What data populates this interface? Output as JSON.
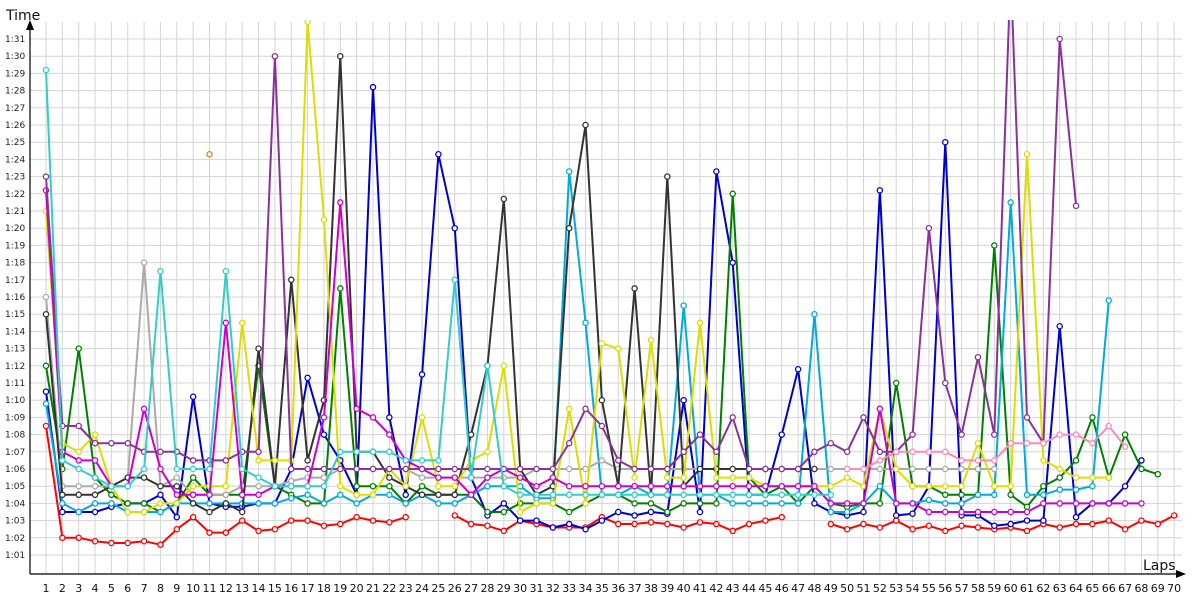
{
  "chart_data": {
    "type": "line",
    "xlabel": "Laps",
    "ylabel": "Time",
    "xlim": [
      1,
      70
    ],
    "ylim": [
      "1:00",
      "1:32"
    ],
    "x_ticks": [
      "1",
      "2",
      "3",
      "4",
      "5",
      "6",
      "7",
      "8",
      "9",
      "10",
      "11",
      "12",
      "13",
      "14",
      "15",
      "16",
      "17",
      "18",
      "19",
      "20",
      "21",
      "22",
      "23",
      "24",
      "25",
      "26",
      "27",
      "28",
      "29",
      "30",
      "31",
      "32",
      "33",
      "34",
      "35",
      "36",
      "37",
      "38",
      "39",
      "40",
      "41",
      "42",
      "43",
      "44",
      "45",
      "46",
      "47",
      "48",
      "49",
      "50",
      "51",
      "52",
      "53",
      "54",
      "55",
      "56",
      "57",
      "58",
      "59",
      "60",
      "61",
      "62",
      "63",
      "64",
      "65",
      "66",
      "67",
      "68",
      "69",
      "70"
    ],
    "y_ticks": [
      "1:01",
      "1:02",
      "1:03",
      "1:04",
      "1:05",
      "1:06",
      "1:07",
      "1:08",
      "1:09",
      "1:10",
      "1:11",
      "1:12",
      "1:13",
      "1:14",
      "1:15",
      "1:16",
      "1:17",
      "1:18",
      "1:19",
      "1:20",
      "1:21",
      "1:22",
      "1:23",
      "1:24",
      "1:25",
      "1:26",
      "1:27",
      "1:28",
      "1:29",
      "1:30",
      "1:31"
    ],
    "grid": true,
    "series": [
      {
        "color": "#ff0000",
        "values": [
          68.5,
          62,
          62,
          61.8,
          61.7,
          61.7,
          61.8,
          61.6,
          62.5,
          63.2,
          62.3,
          62.3,
          63,
          62.4,
          62.5,
          63,
          63,
          62.7,
          62.8,
          63.2,
          63,
          62.9,
          63.2,
          null,
          null,
          63.3,
          62.8,
          62.7,
          62.4,
          63,
          62.8,
          62.6,
          62.6,
          62.6,
          63.2,
          62.8,
          62.8,
          62.9,
          62.8,
          62.6,
          62.9,
          62.8,
          62.4,
          62.8,
          63,
          63.2,
          null,
          null,
          62.8,
          62.5,
          62.8,
          62.6,
          63,
          62.5,
          62.7,
          62.4,
          62.7,
          62.6,
          62.5,
          62.6,
          62.4,
          62.8,
          62.6,
          62.8,
          62.8,
          63,
          62.5,
          63,
          62.8,
          63.3
        ]
      },
      {
        "color": "#0000cc",
        "values": [
          70.5,
          63.5,
          63.5,
          63.5,
          63.8,
          64,
          64,
          64.5,
          63.2,
          70.2,
          64,
          63.8,
          63.8,
          64,
          64,
          66,
          71.3,
          68,
          66.5,
          64.5,
          88.2,
          69,
          64.5,
          71.5,
          84.3,
          80,
          65.5,
          63.3,
          64,
          63,
          63,
          62.6,
          62.8,
          62.5,
          63,
          63.5,
          63.3,
          63.5,
          63.4,
          70,
          63.5,
          83.3,
          78,
          64.5,
          64.5,
          68,
          71.8,
          64,
          63.5,
          63.3,
          63.5,
          82.2,
          63.3,
          63.4,
          65,
          85,
          63.3,
          63.3,
          62.7,
          62.8,
          63,
          63,
          74.3,
          63.2,
          64,
          64,
          65,
          66.5,
          null,
          null
        ]
      },
      {
        "color": "#008000",
        "values": [
          72,
          66,
          73,
          65.5,
          64.5,
          64,
          64,
          63.5,
          64,
          65.5,
          64.5,
          64.5,
          64.5,
          72,
          65,
          64.5,
          64,
          64,
          76.5,
          65,
          65,
          65,
          64,
          65,
          64.5,
          64.5,
          64.5,
          63.5,
          63.5,
          64,
          64,
          64,
          63.5,
          64,
          64.5,
          64.5,
          64,
          64,
          63.5,
          64,
          64,
          64,
          82,
          65.5,
          64.5,
          65,
          64,
          65,
          64,
          63.8,
          64,
          64,
          71,
          65,
          65,
          64.5,
          64.5,
          64.5,
          79,
          64.5,
          63.8,
          65,
          65.5,
          66.5,
          69,
          65.5,
          68,
          66,
          65.7,
          null
        ]
      },
      {
        "color": "#00aadd",
        "values": [
          69.8,
          64,
          63.5,
          64,
          64,
          63.5,
          63.5,
          63.5,
          64,
          64,
          64,
          64,
          64,
          64,
          64,
          64.3,
          64.5,
          64,
          64.5,
          64,
          64.5,
          64.5,
          64,
          64.5,
          64,
          64,
          64.5,
          65,
          65,
          65,
          64.3,
          64.3,
          83.3,
          74.5,
          64.5,
          64.5,
          65,
          64.5,
          64.5,
          75.5,
          64.5,
          64.5,
          64,
          64,
          64,
          64,
          64,
          75,
          63.5,
          63.5,
          64,
          65,
          64,
          64,
          64.2,
          64,
          64,
          64.5,
          64.5,
          81.5,
          64.5,
          64.5,
          64.8,
          64.8,
          65,
          75.8,
          null,
          null,
          null,
          null
        ]
      },
      {
        "color": "#aaaaaa",
        "values": [
          76,
          65,
          65,
          65,
          65,
          65.5,
          78,
          65,
          65.5,
          64.5,
          64.5,
          64.5,
          65,
          65,
          65,
          65.3,
          65.5,
          65.5,
          66,
          66,
          66,
          66,
          66,
          65.5,
          65.5,
          65.5,
          65.5,
          65.5,
          65.5,
          65.5,
          66,
          66,
          66,
          66,
          66.5,
          66,
          66,
          66,
          66,
          66,
          66,
          66,
          66,
          66,
          66,
          66,
          66,
          66,
          66,
          66,
          66,
          66,
          66,
          66,
          66,
          66,
          66,
          66,
          66,
          null,
          null,
          null,
          null,
          null,
          null,
          null,
          null,
          null,
          null,
          null
        ]
      },
      {
        "color": "#333333",
        "values": [
          75,
          64.5,
          64.5,
          64.5,
          65,
          65.5,
          65.5,
          65,
          65,
          64,
          63.5,
          64,
          63.5,
          73,
          65,
          77,
          66.5,
          70,
          90,
          67,
          67,
          65.5,
          65,
          64.5,
          64.5,
          64.5,
          68,
          72,
          81.7,
          66,
          64.5,
          65,
          80,
          86,
          70,
          65,
          76.5,
          64.5,
          83,
          65,
          66,
          66,
          66,
          66,
          66,
          66,
          66,
          66,
          null,
          null,
          null,
          null,
          null,
          null,
          null,
          null,
          null,
          null,
          null,
          null,
          null,
          null,
          null,
          null,
          null,
          null,
          null,
          null,
          null,
          null
        ]
      },
      {
        "color": "#dddd00",
        "values": [
          81,
          67.5,
          67,
          68,
          65,
          63.5,
          63.5,
          64,
          64,
          65,
          65,
          65,
          74.5,
          66.5,
          66.5,
          66.5,
          92,
          80.5,
          65,
          64.5,
          64.5,
          66,
          65,
          69,
          65,
          65,
          66.5,
          67,
          72,
          63.5,
          64,
          64,
          69.5,
          64,
          73.3,
          73,
          65.5,
          73.5,
          65.5,
          65.5,
          74.5,
          65.5,
          65.5,
          65.5,
          65,
          65,
          65,
          65,
          65,
          65.5,
          65,
          69.5,
          66,
          65,
          65,
          65,
          65,
          67.5,
          65,
          65,
          84.3,
          66.5,
          66,
          65.5,
          65.5,
          65.5,
          null,
          null,
          null,
          null
        ]
      },
      {
        "color": "#cc00cc",
        "values": [
          82.2,
          67,
          66.5,
          66.5,
          65,
          65,
          69.5,
          66,
          64.5,
          64.5,
          64.5,
          74.5,
          64.5,
          64.5,
          65,
          65,
          65,
          69,
          81.5,
          69.5,
          69,
          68,
          66.5,
          66,
          65.5,
          65.5,
          64.5,
          65.5,
          66,
          65.5,
          65,
          65.5,
          65,
          65,
          65,
          65,
          65,
          65,
          65,
          65,
          65,
          65,
          65,
          65,
          65,
          65,
          65,
          65,
          64,
          64,
          64,
          69.5,
          64,
          64,
          63.5,
          63.5,
          63.5,
          63.5,
          63.5,
          63.5,
          63.5,
          64,
          64,
          64,
          64,
          64,
          64,
          64,
          null,
          null
        ]
      },
      {
        "color": "#883399",
        "values": [
          83,
          68.5,
          68.5,
          67.5,
          67.5,
          67.5,
          67,
          67,
          67,
          66.5,
          66.5,
          66.5,
          67,
          67,
          90,
          66,
          66,
          66,
          66,
          66,
          66,
          66,
          66,
          66,
          66,
          66,
          66,
          66,
          66,
          66,
          66,
          66,
          67.5,
          69.5,
          68.5,
          66.5,
          66,
          66,
          66,
          67,
          68,
          67,
          69,
          66,
          66,
          66,
          66,
          67,
          67.5,
          67,
          69,
          67,
          67,
          68,
          80,
          71,
          68,
          72.5,
          68,
          95,
          69,
          67.5,
          91,
          81.3,
          null,
          null,
          null,
          null,
          null,
          null
        ]
      },
      {
        "color": "#33cccc",
        "values": [
          89.2,
          66.5,
          66,
          65.5,
          65,
          65,
          66,
          77.5,
          66,
          66,
          66,
          77.5,
          66,
          65.5,
          65,
          65,
          65,
          65,
          67,
          67,
          67,
          67,
          66.5,
          66.5,
          66.5,
          77,
          65.5,
          72,
          65,
          64.5,
          64.5,
          64.5,
          64.5,
          64.5,
          64.5,
          64.5,
          64.5,
          64.5,
          64.5,
          64.5,
          64.5,
          64.5,
          64.5,
          64.5,
          64.5,
          64.5,
          64.5,
          64.5,
          64.5,
          null,
          null,
          null,
          null,
          null,
          null,
          null,
          null,
          null,
          null,
          null,
          null,
          null,
          null,
          null,
          null,
          null,
          null,
          null,
          null,
          null
        ]
      },
      {
        "color": "#ff88bb",
        "values": [
          null,
          null,
          null,
          null,
          null,
          null,
          null,
          null,
          null,
          null,
          null,
          null,
          null,
          null,
          null,
          null,
          null,
          null,
          null,
          null,
          null,
          null,
          null,
          null,
          null,
          null,
          null,
          null,
          null,
          null,
          null,
          null,
          null,
          null,
          null,
          null,
          null,
          null,
          null,
          null,
          null,
          null,
          null,
          null,
          null,
          null,
          null,
          null,
          null,
          66,
          66,
          66.5,
          67,
          67,
          67,
          67,
          66.5,
          66.5,
          66.5,
          67.5,
          67.5,
          67.5,
          68,
          68,
          67.5,
          68.5,
          67.3,
          null,
          null,
          null
        ]
      },
      {
        "color": "#cc8800",
        "values": [
          null,
          null,
          null,
          null,
          null,
          null,
          null,
          null,
          null,
          null,
          84.3,
          null,
          null,
          null,
          null,
          null,
          null,
          null,
          null,
          null,
          null,
          null,
          null,
          null,
          null,
          null,
          null,
          null,
          null,
          null,
          null,
          null,
          null,
          null,
          null,
          null,
          null,
          null,
          null,
          null,
          null,
          null,
          null,
          null,
          null,
          null,
          null,
          null,
          null,
          null,
          null,
          null,
          null,
          null,
          null,
          null,
          null,
          null,
          null,
          null,
          null,
          null,
          null,
          null,
          null,
          null,
          null,
          null,
          null,
          null
        ]
      }
    ]
  }
}
